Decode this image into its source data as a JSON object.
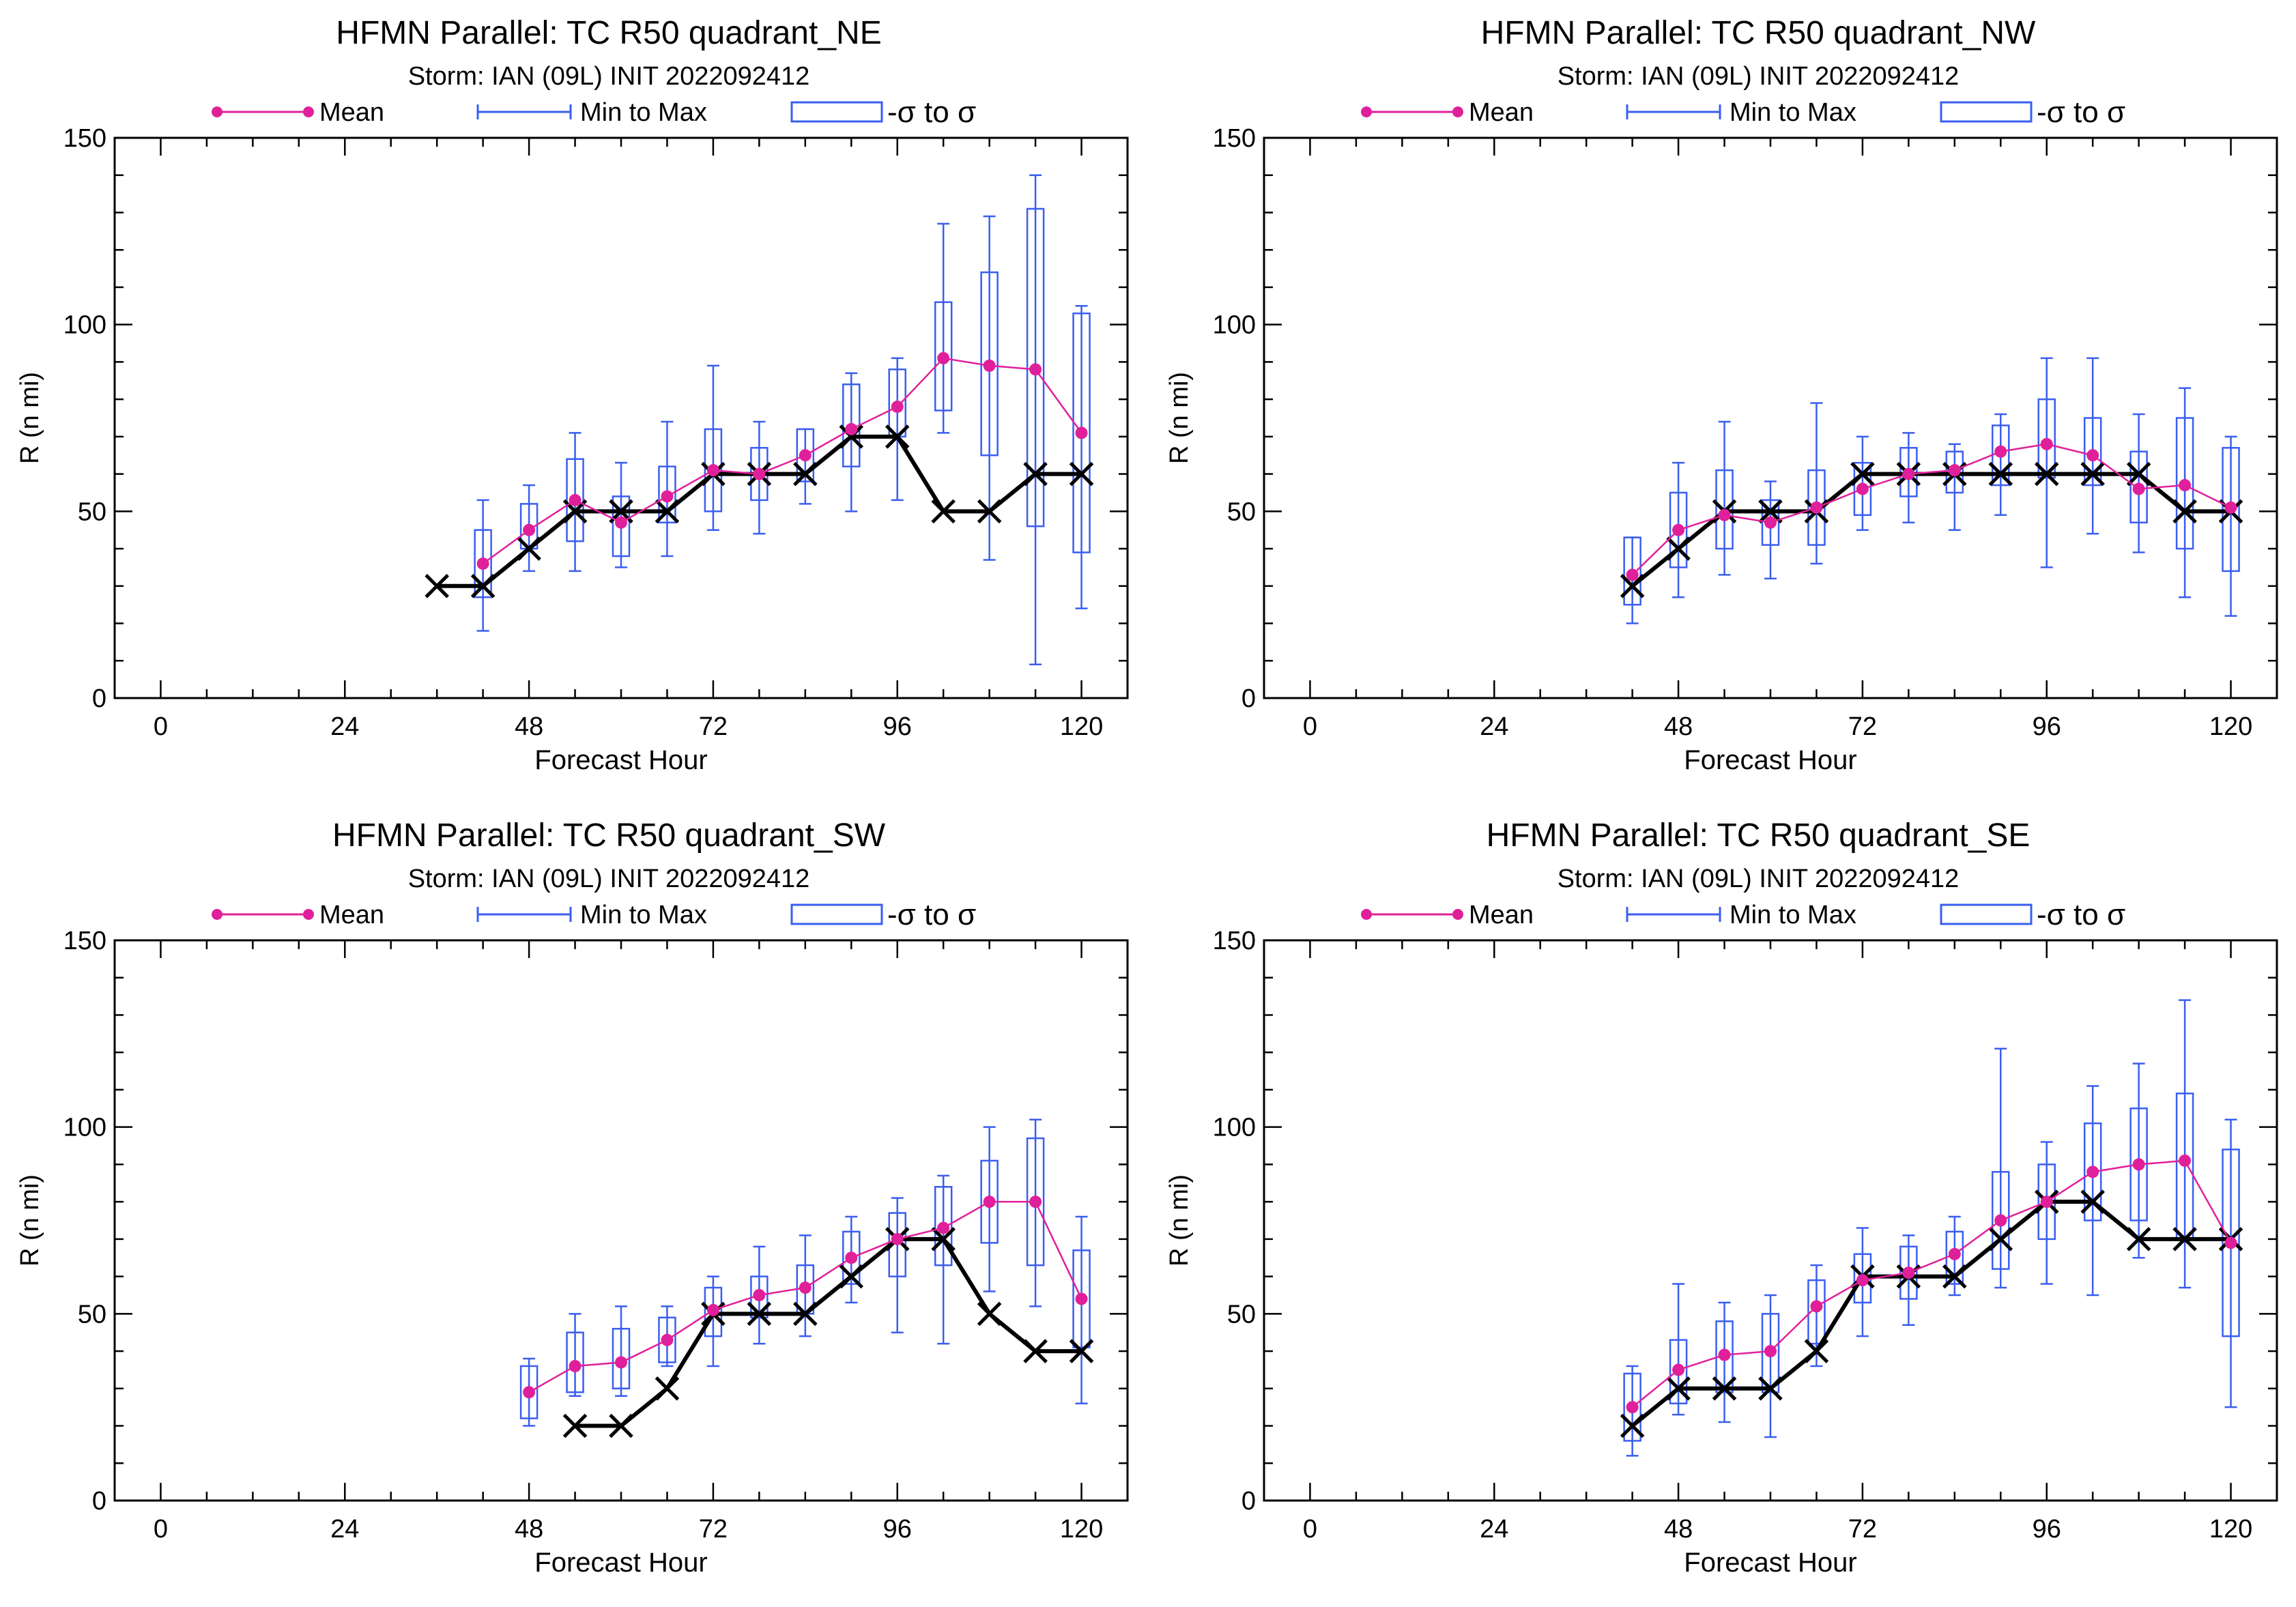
{
  "legend": {
    "mean_label": "Mean",
    "range_label": "Min to Max",
    "sigma_label": "-σ to σ"
  },
  "colors": {
    "mean": "#e0209a",
    "range": "#3a5ef0",
    "obs": "#000000",
    "axis": "#000000"
  },
  "chart_data": [
    {
      "type": "line",
      "title": "HFMN Parallel: TC  R50 quadrant_NE",
      "subtitle": "Storm: IAN (09L) INIT 2022092412",
      "xlabel": "Forecast Hour",
      "ylabel": "R (n mi)",
      "xlim": [
        -6,
        126
      ],
      "ylim": [
        0,
        150
      ],
      "xticks": [
        0,
        24,
        48,
        72,
        96,
        120
      ],
      "yticks": [
        0,
        50,
        100,
        150
      ],
      "grid": false,
      "legend_position": "top",
      "mean": [
        [
          42,
          36
        ],
        [
          48,
          45
        ],
        [
          54,
          53
        ],
        [
          60,
          47
        ],
        [
          66,
          54
        ],
        [
          72,
          61
        ],
        [
          78,
          60
        ],
        [
          84,
          65
        ],
        [
          90,
          72
        ],
        [
          96,
          78
        ],
        [
          102,
          91
        ],
        [
          108,
          89
        ],
        [
          114,
          88
        ],
        [
          120,
          71
        ]
      ],
      "boxes": [
        {
          "x": 42,
          "min": 18,
          "max": 53,
          "lo": 27,
          "hi": 45
        },
        {
          "x": 48,
          "min": 34,
          "max": 57,
          "lo": 40,
          "hi": 52
        },
        {
          "x": 54,
          "min": 34,
          "max": 71,
          "lo": 42,
          "hi": 64
        },
        {
          "x": 60,
          "min": 35,
          "max": 63,
          "lo": 38,
          "hi": 54
        },
        {
          "x": 66,
          "min": 38,
          "max": 74,
          "lo": 47,
          "hi": 62
        },
        {
          "x": 72,
          "min": 45,
          "max": 89,
          "lo": 50,
          "hi": 72
        },
        {
          "x": 78,
          "min": 44,
          "max": 74,
          "lo": 53,
          "hi": 67
        },
        {
          "x": 84,
          "min": 52,
          "max": 72,
          "lo": 58,
          "hi": 72
        },
        {
          "x": 90,
          "min": 50,
          "max": 87,
          "lo": 62,
          "hi": 84
        },
        {
          "x": 96,
          "min": 53,
          "max": 91,
          "lo": 70,
          "hi": 88
        },
        {
          "x": 102,
          "min": 71,
          "max": 127,
          "lo": 77,
          "hi": 106
        },
        {
          "x": 108,
          "min": 37,
          "max": 129,
          "lo": 65,
          "hi": 114
        },
        {
          "x": 114,
          "min": 9,
          "max": 140,
          "lo": 46,
          "hi": 131
        },
        {
          "x": 120,
          "min": 24,
          "max": 105,
          "lo": 39,
          "hi": 103
        }
      ],
      "observed": [
        [
          36,
          30
        ],
        [
          42,
          30
        ],
        [
          48,
          40
        ],
        [
          54,
          50
        ],
        [
          60,
          50
        ],
        [
          66,
          50
        ],
        [
          72,
          60
        ],
        [
          78,
          60
        ],
        [
          84,
          60
        ],
        [
          90,
          70
        ],
        [
          96,
          70
        ],
        [
          102,
          50
        ],
        [
          108,
          50
        ],
        [
          114,
          60
        ],
        [
          120,
          60
        ]
      ]
    },
    {
      "type": "line",
      "title": "HFMN Parallel: TC  R50 quadrant_NW",
      "subtitle": "Storm: IAN (09L) INIT 2022092412",
      "xlabel": "Forecast Hour",
      "ylabel": "R (n mi)",
      "xlim": [
        -6,
        126
      ],
      "ylim": [
        0,
        150
      ],
      "xticks": [
        0,
        24,
        48,
        72,
        96,
        120
      ],
      "yticks": [
        0,
        50,
        100,
        150
      ],
      "grid": false,
      "legend_position": "top",
      "mean": [
        [
          42,
          33
        ],
        [
          48,
          45
        ],
        [
          54,
          49
        ],
        [
          60,
          47
        ],
        [
          66,
          51
        ],
        [
          72,
          56
        ],
        [
          78,
          60
        ],
        [
          84,
          61
        ],
        [
          90,
          66
        ],
        [
          96,
          68
        ],
        [
          102,
          65
        ],
        [
          108,
          56
        ],
        [
          114,
          57
        ],
        [
          120,
          51
        ]
      ],
      "boxes": [
        {
          "x": 42,
          "min": 20,
          "max": 43,
          "lo": 25,
          "hi": 43
        },
        {
          "x": 48,
          "min": 27,
          "max": 63,
          "lo": 35,
          "hi": 55
        },
        {
          "x": 54,
          "min": 33,
          "max": 74,
          "lo": 40,
          "hi": 61
        },
        {
          "x": 60,
          "min": 32,
          "max": 58,
          "lo": 41,
          "hi": 53
        },
        {
          "x": 66,
          "min": 36,
          "max": 79,
          "lo": 41,
          "hi": 61
        },
        {
          "x": 72,
          "min": 45,
          "max": 70,
          "lo": 49,
          "hi": 63
        },
        {
          "x": 78,
          "min": 47,
          "max": 71,
          "lo": 54,
          "hi": 67
        },
        {
          "x": 84,
          "min": 45,
          "max": 68,
          "lo": 55,
          "hi": 66
        },
        {
          "x": 90,
          "min": 49,
          "max": 76,
          "lo": 57,
          "hi": 73
        },
        {
          "x": 96,
          "min": 35,
          "max": 91,
          "lo": 59,
          "hi": 80
        },
        {
          "x": 102,
          "min": 44,
          "max": 91,
          "lo": 57,
          "hi": 75
        },
        {
          "x": 108,
          "min": 39,
          "max": 76,
          "lo": 47,
          "hi": 66
        },
        {
          "x": 114,
          "min": 27,
          "max": 83,
          "lo": 40,
          "hi": 75
        },
        {
          "x": 120,
          "min": 22,
          "max": 70,
          "lo": 34,
          "hi": 67
        }
      ],
      "observed": [
        [
          42,
          30
        ],
        [
          48,
          40
        ],
        [
          54,
          50
        ],
        [
          60,
          50
        ],
        [
          66,
          50
        ],
        [
          72,
          60
        ],
        [
          78,
          60
        ],
        [
          84,
          60
        ],
        [
          90,
          60
        ],
        [
          96,
          60
        ],
        [
          102,
          60
        ],
        [
          108,
          60
        ],
        [
          114,
          50
        ],
        [
          120,
          50
        ]
      ]
    },
    {
      "type": "line",
      "title": "HFMN Parallel: TC  R50 quadrant_SW",
      "subtitle": "Storm: IAN (09L) INIT 2022092412",
      "xlabel": "Forecast Hour",
      "ylabel": "R (n mi)",
      "xlim": [
        -6,
        126
      ],
      "ylim": [
        0,
        150
      ],
      "xticks": [
        0,
        24,
        48,
        72,
        96,
        120
      ],
      "yticks": [
        0,
        50,
        100,
        150
      ],
      "grid": false,
      "legend_position": "top",
      "mean": [
        [
          48,
          29
        ],
        [
          54,
          36
        ],
        [
          60,
          37
        ],
        [
          66,
          43
        ],
        [
          72,
          51
        ],
        [
          78,
          55
        ],
        [
          84,
          57
        ],
        [
          90,
          65
        ],
        [
          96,
          70
        ],
        [
          102,
          73
        ],
        [
          108,
          80
        ],
        [
          114,
          80
        ],
        [
          120,
          54
        ]
      ],
      "boxes": [
        {
          "x": 48,
          "min": 20,
          "max": 38,
          "lo": 22,
          "hi": 36
        },
        {
          "x": 54,
          "min": 28,
          "max": 50,
          "lo": 29,
          "hi": 45
        },
        {
          "x": 60,
          "min": 28,
          "max": 52,
          "lo": 30,
          "hi": 46
        },
        {
          "x": 66,
          "min": 36,
          "max": 52,
          "lo": 37,
          "hi": 49
        },
        {
          "x": 72,
          "min": 36,
          "max": 60,
          "lo": 44,
          "hi": 57
        },
        {
          "x": 78,
          "min": 42,
          "max": 68,
          "lo": 49,
          "hi": 60
        },
        {
          "x": 84,
          "min": 44,
          "max": 71,
          "lo": 50,
          "hi": 63
        },
        {
          "x": 90,
          "min": 53,
          "max": 76,
          "lo": 58,
          "hi": 72
        },
        {
          "x": 96,
          "min": 45,
          "max": 81,
          "lo": 60,
          "hi": 77
        },
        {
          "x": 102,
          "min": 42,
          "max": 87,
          "lo": 63,
          "hi": 84
        },
        {
          "x": 108,
          "min": 56,
          "max": 100,
          "lo": 69,
          "hi": 91
        },
        {
          "x": 114,
          "min": 52,
          "max": 102,
          "lo": 63,
          "hi": 97
        },
        {
          "x": 120,
          "min": 26,
          "max": 76,
          "lo": 41,
          "hi": 67
        }
      ],
      "observed": [
        [
          54,
          20
        ],
        [
          60,
          20
        ],
        [
          66,
          30
        ],
        [
          72,
          50
        ],
        [
          78,
          50
        ],
        [
          84,
          50
        ],
        [
          90,
          60
        ],
        [
          96,
          70
        ],
        [
          102,
          70
        ],
        [
          108,
          50
        ],
        [
          114,
          40
        ],
        [
          120,
          40
        ]
      ]
    },
    {
      "type": "line",
      "title": "HFMN Parallel: TC  R50 quadrant_SE",
      "subtitle": "Storm: IAN (09L) INIT 2022092412",
      "xlabel": "Forecast Hour",
      "ylabel": "R (n mi)",
      "xlim": [
        -6,
        126
      ],
      "ylim": [
        0,
        150
      ],
      "xticks": [
        0,
        24,
        48,
        72,
        96,
        120
      ],
      "yticks": [
        0,
        50,
        100,
        150
      ],
      "grid": false,
      "legend_position": "top",
      "mean": [
        [
          42,
          25
        ],
        [
          48,
          35
        ],
        [
          54,
          39
        ],
        [
          60,
          40
        ],
        [
          66,
          52
        ],
        [
          72,
          59
        ],
        [
          78,
          61
        ],
        [
          84,
          66
        ],
        [
          90,
          75
        ],
        [
          96,
          80
        ],
        [
          102,
          88
        ],
        [
          108,
          90
        ],
        [
          114,
          91
        ],
        [
          120,
          69
        ]
      ],
      "boxes": [
        {
          "x": 42,
          "min": 12,
          "max": 36,
          "lo": 16,
          "hi": 34
        },
        {
          "x": 48,
          "min": 23,
          "max": 58,
          "lo": 26,
          "hi": 43
        },
        {
          "x": 54,
          "min": 21,
          "max": 53,
          "lo": 29,
          "hi": 48
        },
        {
          "x": 60,
          "min": 17,
          "max": 55,
          "lo": 29,
          "hi": 50
        },
        {
          "x": 66,
          "min": 36,
          "max": 63,
          "lo": 42,
          "hi": 59
        },
        {
          "x": 72,
          "min": 44,
          "max": 73,
          "lo": 53,
          "hi": 66
        },
        {
          "x": 78,
          "min": 47,
          "max": 71,
          "lo": 54,
          "hi": 68
        },
        {
          "x": 84,
          "min": 55,
          "max": 76,
          "lo": 58,
          "hi": 72
        },
        {
          "x": 90,
          "min": 57,
          "max": 121,
          "lo": 62,
          "hi": 88
        },
        {
          "x": 96,
          "min": 58,
          "max": 96,
          "lo": 70,
          "hi": 90
        },
        {
          "x": 102,
          "min": 55,
          "max": 111,
          "lo": 75,
          "hi": 101
        },
        {
          "x": 108,
          "min": 65,
          "max": 117,
          "lo": 75,
          "hi": 105
        },
        {
          "x": 114,
          "min": 57,
          "max": 134,
          "lo": 70,
          "hi": 109
        },
        {
          "x": 120,
          "min": 25,
          "max": 102,
          "lo": 44,
          "hi": 94
        }
      ],
      "observed": [
        [
          42,
          20
        ],
        [
          48,
          30
        ],
        [
          54,
          30
        ],
        [
          60,
          30
        ],
        [
          66,
          40
        ],
        [
          72,
          60
        ],
        [
          78,
          60
        ],
        [
          84,
          60
        ],
        [
          90,
          70
        ],
        [
          96,
          80
        ],
        [
          102,
          80
        ],
        [
          108,
          70
        ],
        [
          114,
          70
        ],
        [
          120,
          70
        ]
      ]
    }
  ]
}
